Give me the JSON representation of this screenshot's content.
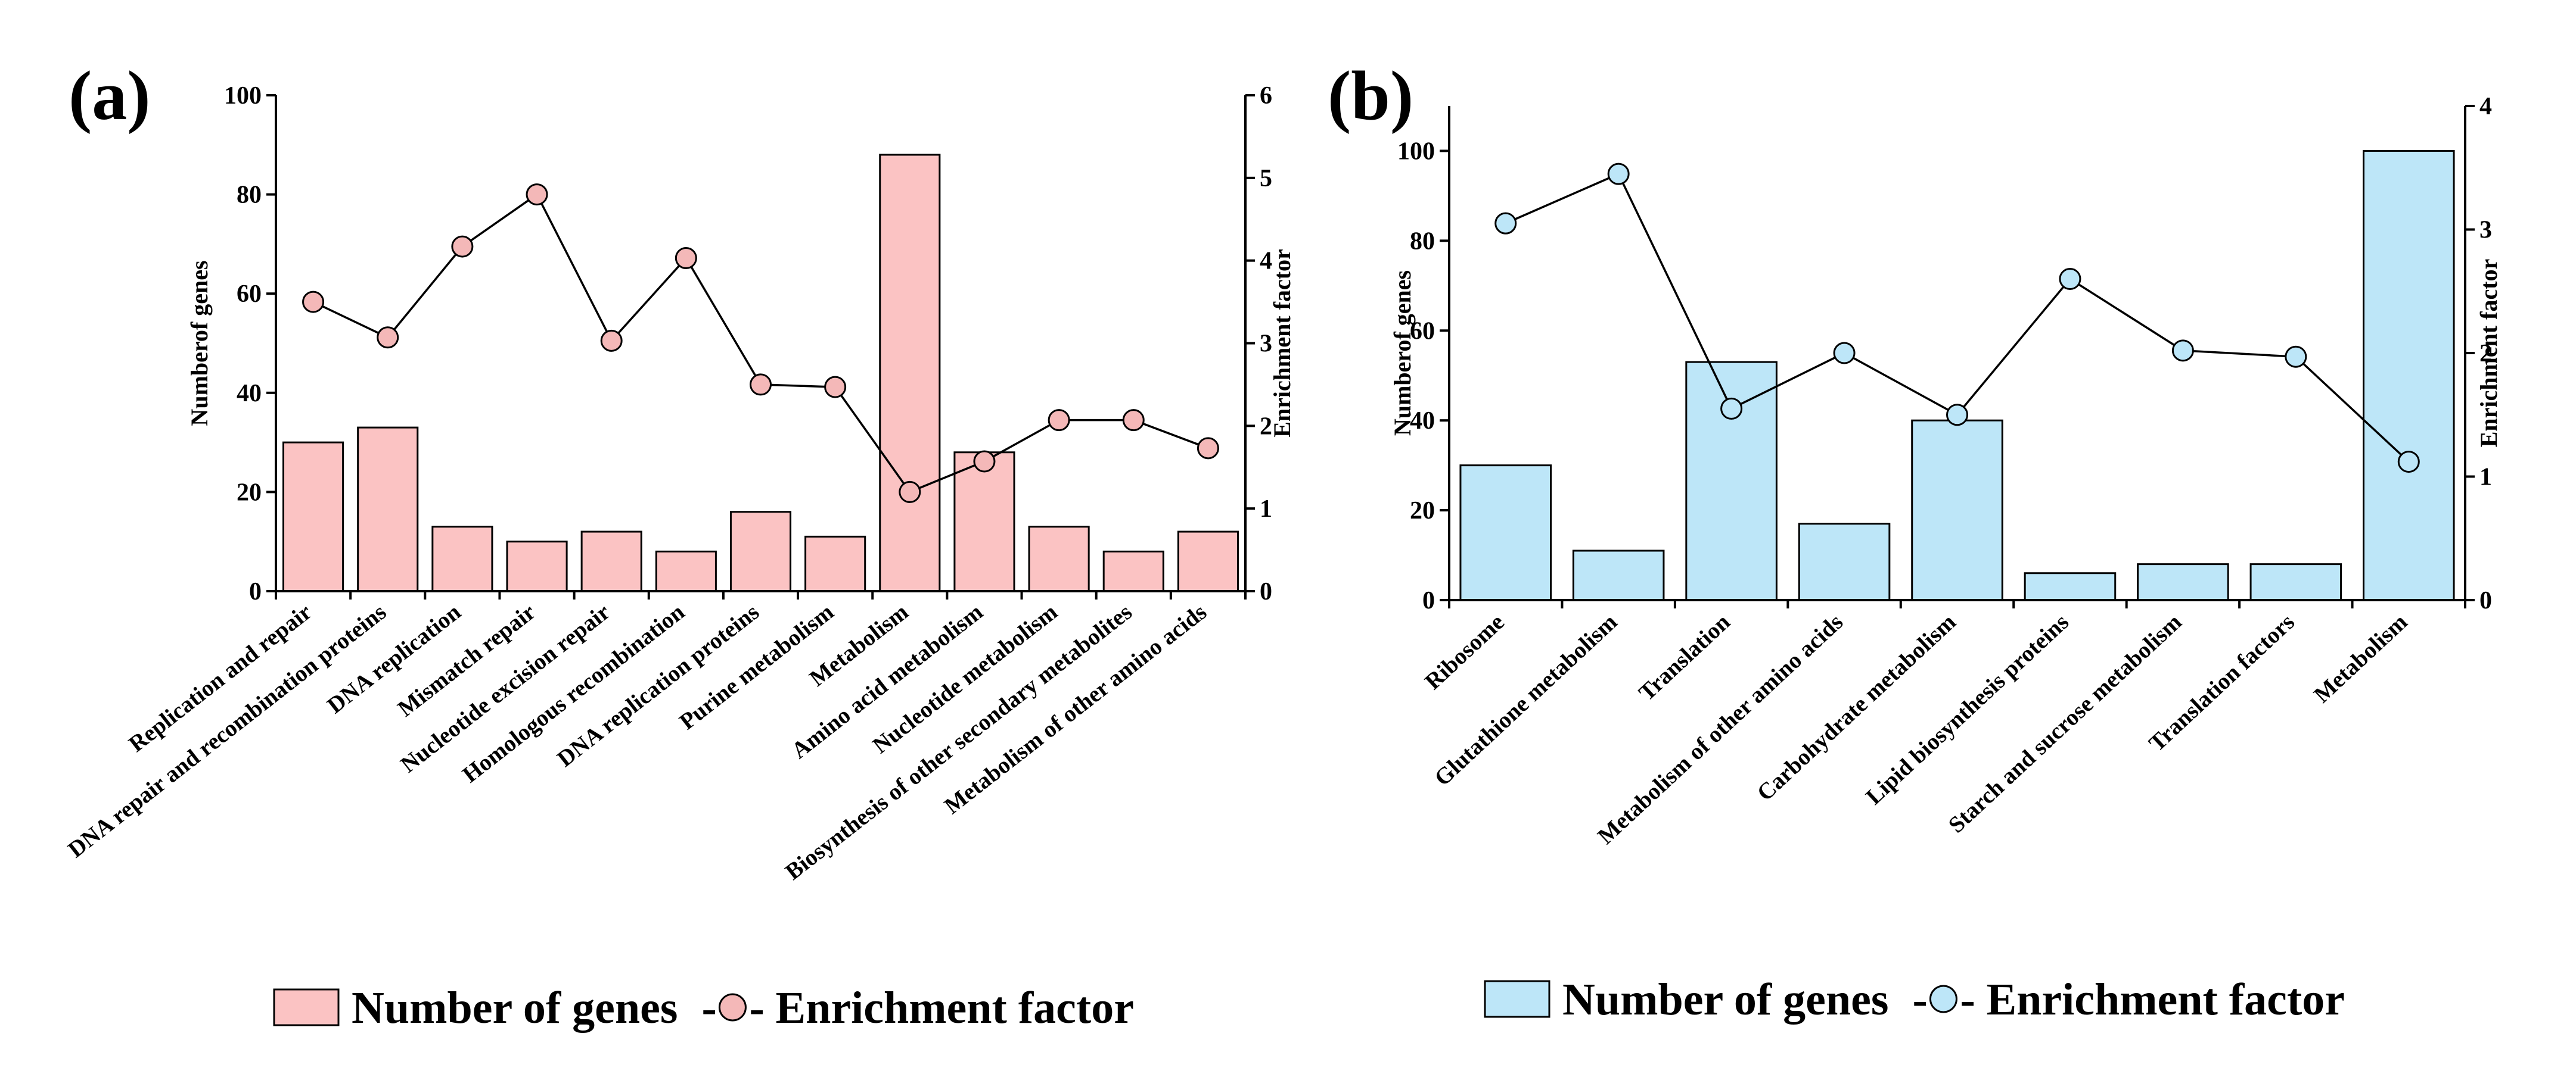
{
  "chart_data": [
    {
      "panel": "(a)",
      "type": "bar",
      "categories": [
        "Replication and repair",
        "DNA repair and recombination proteins",
        "DNA replication",
        "Mismatch repair",
        "Nucleotide excision repair",
        "Homologous recombination",
        "DNA replication proteins",
        "Purine metabolism",
        "Metabolism",
        "Amino acid metabolism",
        "Nucleotide metabolism",
        "Biosynthesis of other secondary metabolites",
        "Metabolism of other amino acids"
      ],
      "series": [
        {
          "name": "Number of genes",
          "kind": "bar",
          "axis": "left",
          "values": [
            30,
            33,
            13,
            10,
            12,
            8,
            16,
            11,
            88,
            28,
            13,
            8,
            12
          ]
        },
        {
          "name": "Enrichment factor",
          "kind": "line",
          "axis": "right",
          "values": [
            3.5,
            3.07,
            4.17,
            4.8,
            3.03,
            4.03,
            2.5,
            2.47,
            1.2,
            1.57,
            2.07,
            2.07,
            1.73
          ]
        }
      ],
      "ylabel": "Numberof genes",
      "y2label": "Enrichment factor",
      "ylim": [
        0,
        100
      ],
      "y2lim": [
        0,
        6
      ],
      "yticks": [
        0,
        20,
        40,
        60,
        80,
        100
      ],
      "y2ticks": [
        0,
        1,
        2,
        3,
        4,
        5,
        6
      ],
      "bar_color": "#fbc3c3",
      "marker_color": "#f4b8b8",
      "legend": {
        "bar_label": "Number of genes",
        "line_label": "Enrichment factor",
        "line_prefix": "-",
        "line_suffix": "-"
      }
    },
    {
      "panel": "(b)",
      "type": "bar",
      "categories": [
        "Ribosome",
        "Glutathione metabolism",
        "Translation",
        "Metabolism of other amino acids",
        "Carbohydrate metabolism",
        "Lipid biosynthesis proteins",
        "Starch and sucrose metabolism",
        "Translation factors",
        "Metabolism"
      ],
      "series": [
        {
          "name": "Number of genes",
          "kind": "bar",
          "axis": "left",
          "values": [
            30,
            11,
            53,
            17,
            40,
            6,
            8,
            8,
            100
          ]
        },
        {
          "name": "Enrichment factor",
          "kind": "line",
          "axis": "right",
          "values": [
            3.05,
            3.45,
            1.55,
            2.0,
            1.5,
            2.6,
            2.02,
            1.97,
            1.12
          ]
        }
      ],
      "ylabel": "Numberof genes",
      "y2label": "Enrichment factor",
      "ylim": [
        0,
        110
      ],
      "y2lim": [
        0,
        4
      ],
      "yticks": [
        0,
        20,
        40,
        60,
        80,
        100
      ],
      "y2ticks": [
        0,
        1,
        2,
        3,
        4
      ],
      "bar_color": "#bde6f8",
      "marker_color": "#bde6f8",
      "legend": {
        "bar_label": "Number of genes",
        "line_label": "Enrichment factor",
        "line_prefix": "-",
        "line_suffix": "-"
      }
    }
  ]
}
